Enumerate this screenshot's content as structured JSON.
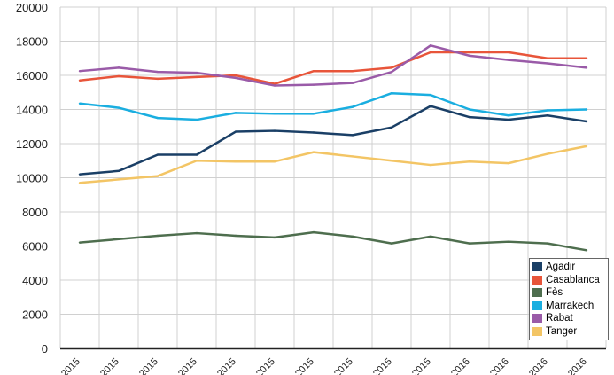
{
  "chart_data": {
    "type": "line",
    "title": "",
    "xlabel": "",
    "ylabel": "",
    "ylim": [
      0,
      20000
    ],
    "yticks": [
      0,
      2000,
      4000,
      6000,
      8000,
      10000,
      12000,
      14000,
      16000,
      18000,
      20000
    ],
    "categories": [
      "2015",
      "2015",
      "2015",
      "2015",
      "2015",
      "2015",
      "2015",
      "2015",
      "2015",
      "2015",
      "2016",
      "2016",
      "2016",
      "2016"
    ],
    "grid": true,
    "legend_position": "bottom-right",
    "series": [
      {
        "name": "Agadir",
        "color": "#1a3f66",
        "values": [
          10200,
          10400,
          11350,
          11350,
          12700,
          12750,
          12650,
          12500,
          12950,
          14200,
          13550,
          13400,
          13650,
          13300
        ]
      },
      {
        "name": "Casablanca",
        "color": "#e8553a",
        "values": [
          15700,
          15950,
          15800,
          15900,
          16000,
          15500,
          16250,
          16250,
          16450,
          17350,
          17350,
          17350,
          17000,
          17000
        ]
      },
      {
        "name": "Fès",
        "color": "#4e6e4e",
        "values": [
          6200,
          6400,
          6600,
          6750,
          6600,
          6500,
          6800,
          6550,
          6150,
          6550,
          6150,
          6250,
          6150,
          5750
        ]
      },
      {
        "name": "Marrakech",
        "color": "#1aaee0",
        "values": [
          14350,
          14100,
          13500,
          13400,
          13800,
          13750,
          13750,
          14150,
          14950,
          14850,
          14000,
          13650,
          13950,
          14000
        ]
      },
      {
        "name": "Rabat",
        "color": "#9a5ba8",
        "values": [
          16250,
          16450,
          16200,
          16150,
          15850,
          15400,
          15450,
          15550,
          16200,
          17750,
          17150,
          16900,
          16700,
          16450
        ]
      },
      {
        "name": "Tanger",
        "color": "#f3c565",
        "values": [
          9700,
          9900,
          10100,
          11000,
          10950,
          10950,
          11500,
          11250,
          11000,
          10750,
          10950,
          10850,
          11400,
          11850
        ]
      }
    ]
  }
}
